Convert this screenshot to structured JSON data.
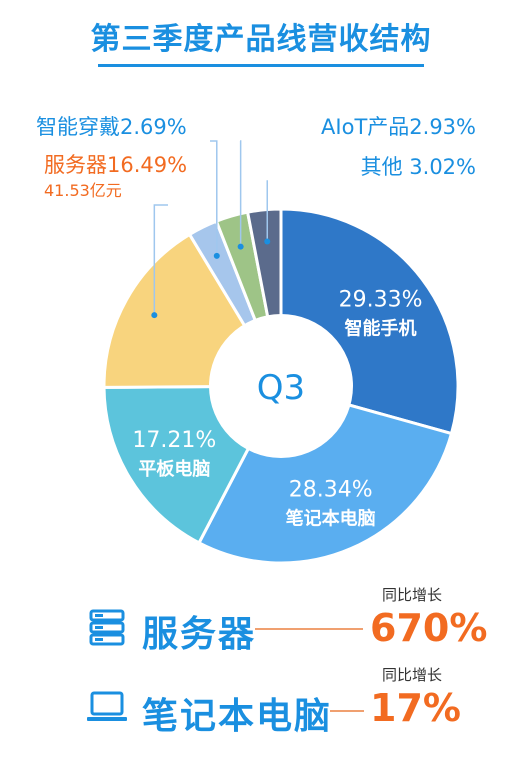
{
  "chart_data": {
    "type": "pie",
    "style": "donut",
    "title": "第三季度产品线营收结构",
    "center_label": "Q3",
    "slices": [
      {
        "label": "智能手机",
        "value": 29.33,
        "value_text": "29.33%",
        "color": "#2f78c8",
        "label_placement": "inside"
      },
      {
        "label": "笔记本电脑",
        "value": 28.34,
        "value_text": "28.34%",
        "color": "#5aaef0",
        "label_placement": "inside"
      },
      {
        "label": "平板电脑",
        "value": 17.21,
        "value_text": "17.21%",
        "color": "#5cc4dc",
        "label_placement": "inside"
      },
      {
        "label": "服务器",
        "value": 16.49,
        "value_text": "16.49%",
        "color": "#f8d47e",
        "label_placement": "outside",
        "extra_text": "41.53亿元",
        "label_color": "#f26b21"
      },
      {
        "label": "智能穿戴",
        "value": 2.69,
        "value_text": "2.69%",
        "color": "#a6c6ec",
        "label_placement": "outside",
        "label_color": "#1a8fe0"
      },
      {
        "label": "AIoT产品",
        "value": 2.93,
        "value_text": "2.93%",
        "color": "#9ec487",
        "label_placement": "outside",
        "label_color": "#1a8fe0"
      },
      {
        "label": "其他",
        "value": 3.02,
        "value_text": " 3.02%",
        "color": "#5b6b8c",
        "label_placement": "outside",
        "label_color": "#1a8fe0"
      }
    ]
  },
  "stats": [
    {
      "icon": "server-icon",
      "label": "服务器",
      "caption": "同比增长",
      "value": "670%"
    },
    {
      "icon": "laptop-icon",
      "label": "笔记本电脑",
      "caption": "同比增长",
      "value": "17%"
    }
  ],
  "colors": {
    "accent": "#1a8fe0",
    "highlight": "#f26b21"
  }
}
